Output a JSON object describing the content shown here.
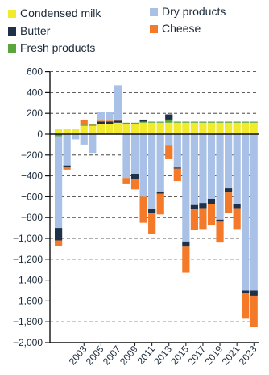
{
  "chart_data": {
    "type": "bar",
    "stacked": true,
    "title": "",
    "xlabel": "",
    "ylabel": "",
    "ylim": [
      -2000,
      600
    ],
    "y_ticks": [
      600,
      400,
      200,
      0,
      -200,
      -400,
      -600,
      -800,
      -1000,
      -1200,
      -1400,
      -1600,
      -1800,
      -2000
    ],
    "y_tick_labels": [
      "600",
      "400",
      "200",
      "0",
      "−200",
      "−400",
      "−600",
      "−800",
      "−1,000",
      "−1,200",
      "−1,400",
      "−1,600",
      "−1,800",
      "−2,000"
    ],
    "grid": "dashed horizontal lines at each 200",
    "legend_position": "top",
    "categories": [
      "2000",
      "2001",
      "2002",
      "2003",
      "2004",
      "2005",
      "2006",
      "2007",
      "2008",
      "2009",
      "2010",
      "2011",
      "2012",
      "2013",
      "2014",
      "2015",
      "2016",
      "2017",
      "2018",
      "2019",
      "2020",
      "2021",
      "2022",
      "2023"
    ],
    "x_tick_labels_shown": [
      "2003",
      "2005",
      "2007",
      "2009",
      "2011",
      "2013",
      "2015",
      "2017",
      "2019",
      "2021",
      "2023"
    ],
    "series": [
      {
        "name": "Condensed milk",
        "color": "#f2ea2c",
        "values": [
          50,
          50,
          50,
          80,
          80,
          100,
          100,
          110,
          100,
          100,
          110,
          110,
          110,
          110,
          110,
          110,
          110,
          110,
          110,
          110,
          110,
          110,
          110,
          110
        ]
      },
      {
        "name": "Butter",
        "color": "#1f3148",
        "values": [
          -120,
          -20,
          0,
          0,
          0,
          20,
          20,
          20,
          0,
          -50,
          20,
          -40,
          -20,
          50,
          -10,
          -50,
          -40,
          -50,
          -50,
          -20,
          -40,
          -40,
          -20,
          -50
        ]
      },
      {
        "name": "Fresh products",
        "color": "#5aa53c",
        "values": [
          -20,
          0,
          0,
          10,
          10,
          0,
          0,
          0,
          10,
          10,
          10,
          10,
          10,
          30,
          10,
          10,
          10,
          10,
          10,
          10,
          10,
          10,
          10,
          10
        ]
      },
      {
        "name": "Dry products",
        "color": "#a9c1e6",
        "values": [
          -880,
          -300,
          -50,
          -100,
          -180,
          80,
          80,
          330,
          -420,
          -380,
          -600,
          -720,
          -550,
          -110,
          -320,
          -1030,
          -680,
          -660,
          -620,
          -820,
          -520,
          -670,
          -1500,
          -1500
        ]
      },
      {
        "name": "Cheese",
        "color": "#f47a2a",
        "values": [
          -50,
          -20,
          0,
          50,
          10,
          10,
          10,
          10,
          -60,
          -100,
          -250,
          -200,
          -200,
          -130,
          -120,
          -250,
          -200,
          -200,
          -200,
          -200,
          -200,
          -200,
          -250,
          -300
        ]
      }
    ]
  }
}
